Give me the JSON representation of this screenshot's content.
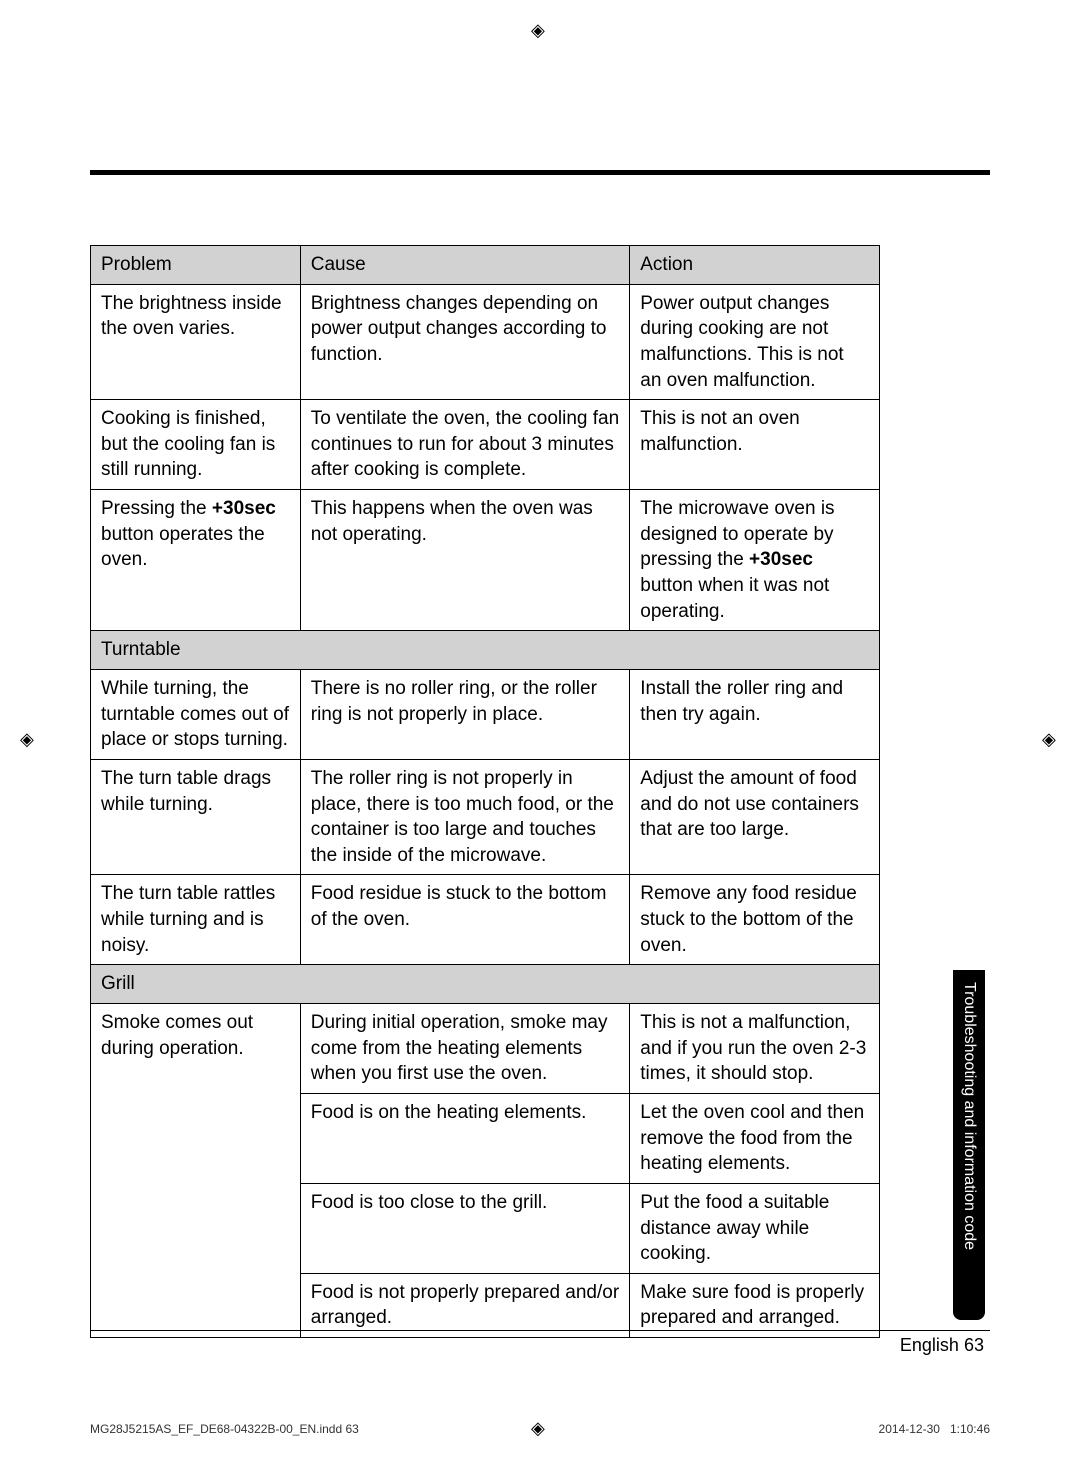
{
  "table": {
    "headers": [
      "Problem",
      "Cause",
      "Action"
    ],
    "rows": [
      {
        "problem": "The brightness inside the oven varies.",
        "cause": "Brightness changes depending on power output changes according to function.",
        "action": "Power output changes during cooking are not malfunctions. This is not an oven malfunction."
      },
      {
        "problem": "Cooking is finished, but the cooling fan is still running.",
        "cause": "To ventilate the oven, the cooling fan continues to run for about 3 minutes after cooking is complete.",
        "action": "This is not an oven malfunction."
      },
      {
        "problem_prefix": "Pressing the ",
        "problem_bold": "+30sec",
        "problem_suffix": " button operates the oven.",
        "cause": "This happens when the oven was not operating.",
        "action_prefix": "The microwave oven is designed to operate by pressing the ",
        "action_bold": "+30sec",
        "action_suffix": " button when it was not operating."
      }
    ],
    "section_turntable": "Turntable",
    "turntable_rows": [
      {
        "problem": "While turning, the turntable comes out of place or stops turning.",
        "cause": "There is no roller ring, or the roller ring is not properly in place.",
        "action": "Install the roller ring and then try again."
      },
      {
        "problem": "The turn table drags while turning.",
        "cause": "The roller ring is not properly in place, there is too much food, or the container is too large and touches the inside of the microwave.",
        "action": "Adjust the amount of food and do not use containers that are too large."
      },
      {
        "problem": "The turn table rattles while turning and is noisy.",
        "cause": "Food residue is stuck to the bottom of the oven.",
        "action": "Remove any food residue stuck to the bottom of the oven."
      }
    ],
    "section_grill": "Grill",
    "grill_rows": [
      {
        "problem": "Smoke comes out during operation.",
        "cause": "During initial operation, smoke may come from the heating elements when you first use the oven.",
        "action": "This is not a malfunction, and if you run the oven 2-3 times, it should stop."
      },
      {
        "cause": "Food is on the heating elements.",
        "action": "Let the oven cool and then remove the food from the heating elements."
      },
      {
        "cause": "Food is too close to the grill.",
        "action": "Put the food a suitable distance away while cooking."
      },
      {
        "cause": "Food is not properly prepared and/or arranged.",
        "action": "Make sure food is properly prepared and arranged."
      }
    ]
  },
  "side_tab": "Troubleshooting and information code",
  "footer": {
    "language": "English",
    "page_number": "63"
  },
  "print_info": {
    "filename": "MG28J5215AS_EF_DE68-04322B-00_EN.indd   63",
    "date": "2014-12-30",
    "time": "1:10:46"
  },
  "colors": {
    "header_bg": "#d2d2d2",
    "border": "#000000",
    "text": "#000000",
    "tab_bg": "#000000",
    "tab_text": "#ffffff"
  }
}
